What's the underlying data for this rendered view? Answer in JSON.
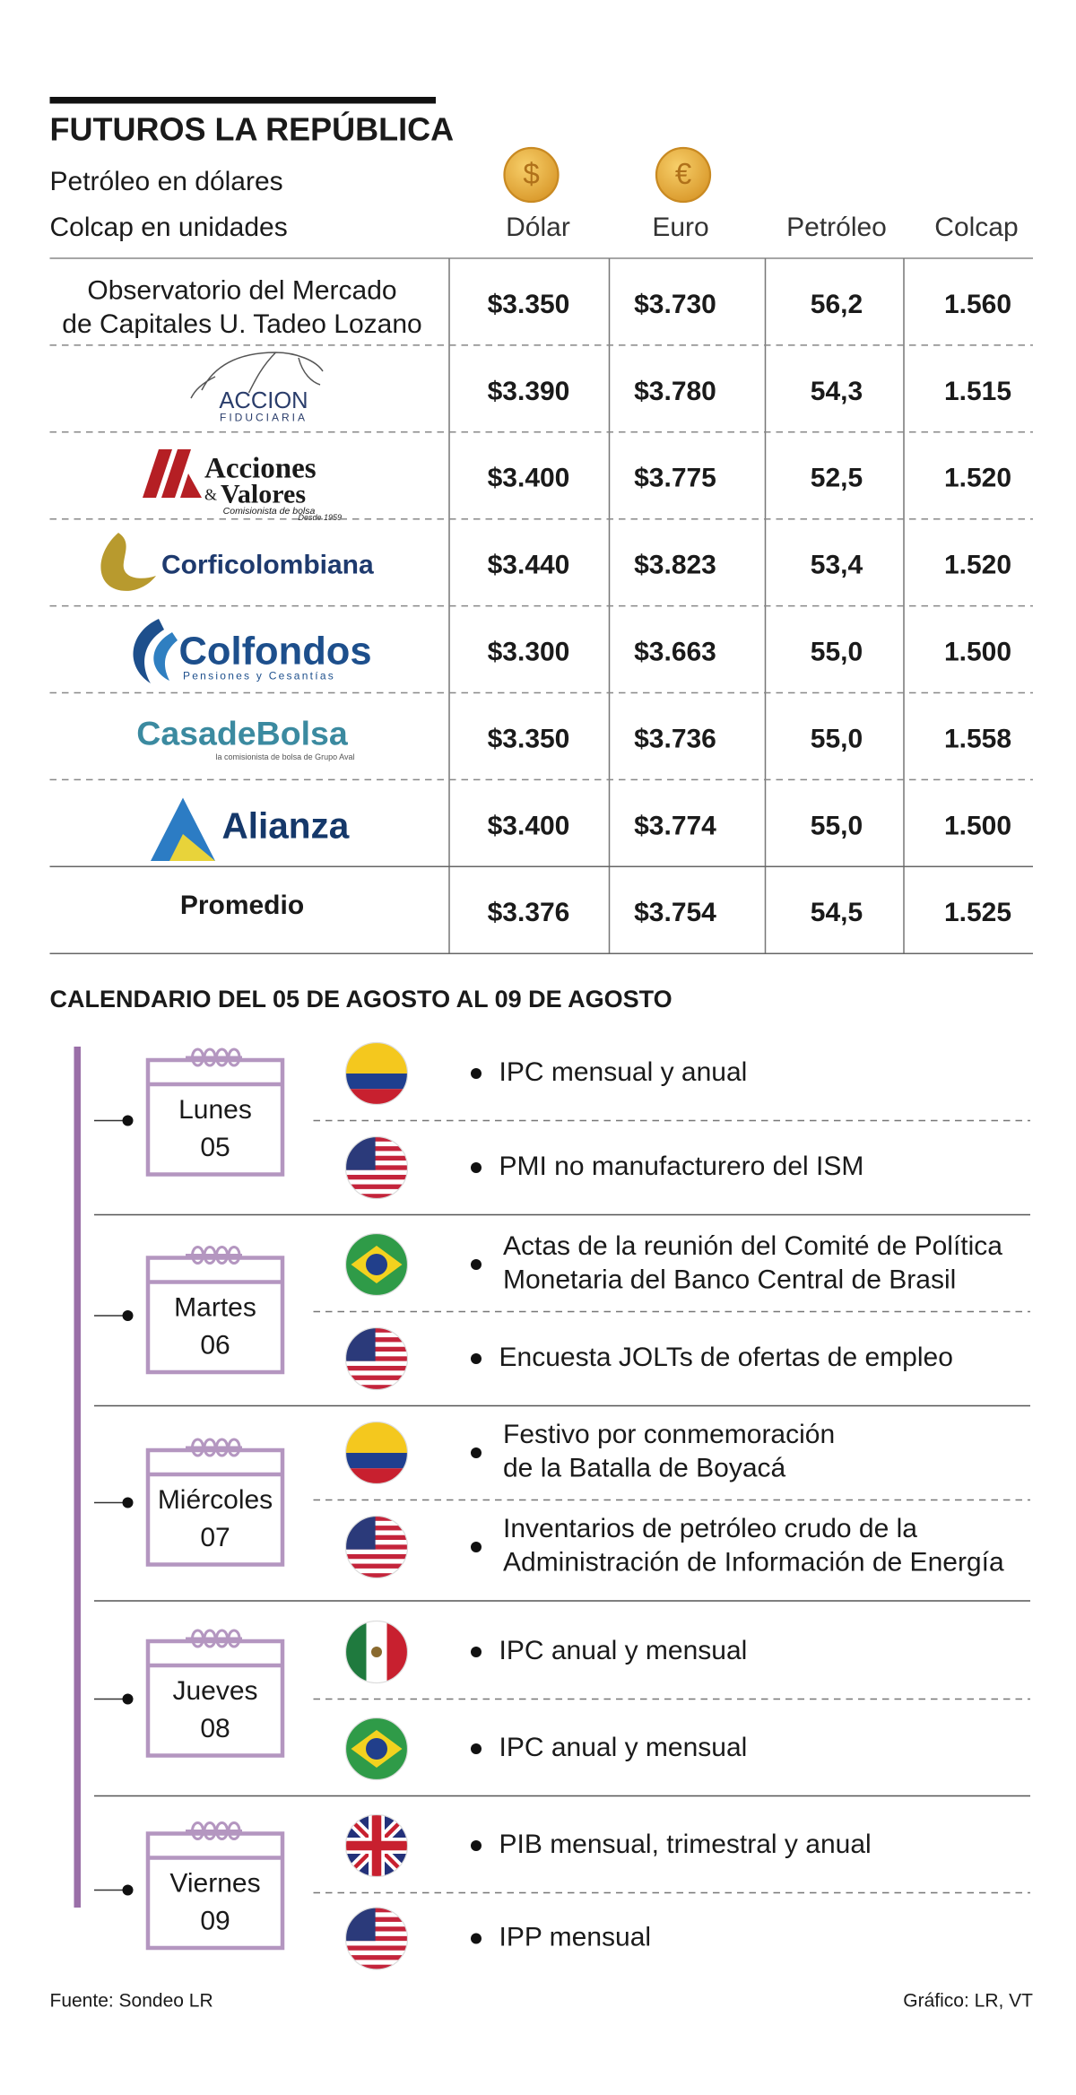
{
  "header": {
    "title": "FUTUROS LA REPÚBLICA",
    "subtitle": [
      "Petróleo en dólares",
      "Colcap en unidades"
    ],
    "currency_icons": [
      "$",
      "€"
    ]
  },
  "table": {
    "columns": [
      "Dólar",
      "Euro",
      "Petróleo",
      "Colcap"
    ],
    "rows": [
      {
        "source": [
          "Observatorio del Mercado",
          "de Capitales U. Tadeo Lozano"
        ],
        "values": [
          "$3.350",
          "$3.730",
          "56,2",
          "1.560"
        ]
      },
      {
        "source": [
          "ACCION",
          "FIDUCIARIA"
        ],
        "values": [
          "$3.390",
          "$3.780",
          "54,3",
          "1.515"
        ]
      },
      {
        "source": [
          "Acciones",
          "&",
          "Valores",
          "Comisionista de bolsa",
          "Desde 1959"
        ],
        "values": [
          "$3.400",
          "$3.775",
          "52,5",
          "1.520"
        ]
      },
      {
        "source": [
          "Corficolombiana"
        ],
        "values": [
          "$3.440",
          "$3.823",
          "53,4",
          "1.520"
        ]
      },
      {
        "source": [
          "Colfondos",
          "Pensiones y Cesantías"
        ],
        "values": [
          "$3.300",
          "$3.663",
          "55,0",
          "1.500"
        ]
      },
      {
        "source": [
          "CasadeBolsa",
          "la comisionista de bolsa de Grupo Aval"
        ],
        "values": [
          "$3.350",
          "$3.736",
          "55,0",
          "1.558"
        ]
      },
      {
        "source": [
          "Alianza"
        ],
        "values": [
          "$3.400",
          "$3.774",
          "55,0",
          "1.500"
        ]
      },
      {
        "source": [
          "Promedio"
        ],
        "values": [
          "$3.376",
          "$3.754",
          "54,5",
          "1.525"
        ]
      }
    ]
  },
  "calendar": {
    "title": "CALENDARIO DEL 05 DE AGOSTO AL 09 DE AGOSTO",
    "days": [
      {
        "day": "Lunes",
        "date": "05",
        "events": [
          [
            "IPC mensual y anual"
          ],
          [
            "PMI no manufacturero del ISM"
          ]
        ]
      },
      {
        "day": "Martes",
        "date": "06",
        "events": [
          [
            "Actas de la reunión del Comité de Política",
            "Monetaria del Banco Central de Brasil"
          ],
          [
            "Encuesta JOLTs de ofertas de empleo"
          ]
        ]
      },
      {
        "day": "Miércoles",
        "date": "07",
        "events": [
          [
            "Festivo por conmemoración",
            "de la Batalla de Boyacá"
          ],
          [
            "Inventarios de petróleo crudo de la",
            "Administración de Información de Energía"
          ]
        ]
      },
      {
        "day": "Jueves",
        "date": "08",
        "events": [
          [
            "IPC anual y mensual"
          ],
          [
            "IPC anual y mensual"
          ]
        ]
      },
      {
        "day": "Viernes",
        "date": "09",
        "events": [
          [
            "PIB mensual, trimestral y anual"
          ],
          [
            "IPP mensual"
          ]
        ]
      }
    ]
  },
  "footer": {
    "source": "Fuente: Sondeo LR",
    "credit": "Gráfico: LR, VT"
  }
}
